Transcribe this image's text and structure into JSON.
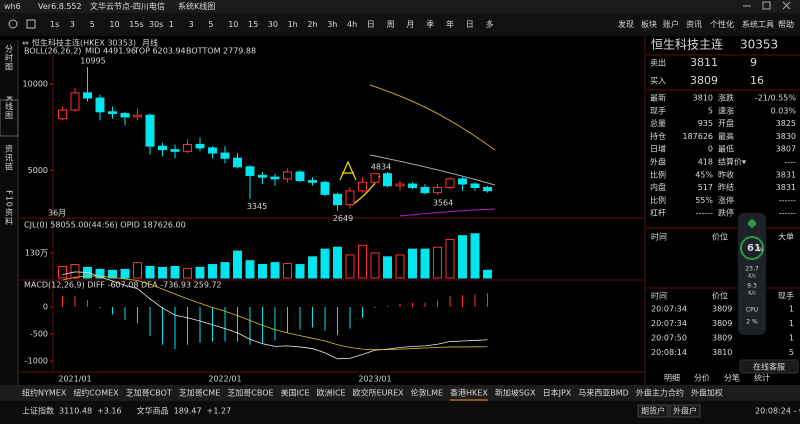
{
  "titlebar": {
    "app": "wh6",
    "version": "Ver6.8.552",
    "server": "文华云节点-四川电信",
    "view": "系统K线图"
  },
  "periods": [
    "1s",
    "3",
    "5",
    "10",
    "15s",
    "30s",
    "1",
    "3",
    "5",
    "10",
    "15",
    "30",
    "1h",
    "2h",
    "3h",
    "4h",
    "日",
    "周",
    "月",
    "季",
    "年",
    "日",
    "多"
  ],
  "menu": [
    "发现",
    "板块",
    "账户",
    "资讯",
    "个性化",
    "系统工具",
    "帮助"
  ],
  "side_tabs": [
    "分时图",
    "K线图",
    "资讯链",
    "F10资料"
  ],
  "chart": {
    "symbol": "恒生科技主连(HKEX 30353)",
    "period": "月线",
    "boll_legend": [
      "BOLL(26,26,2)",
      "MID 4491.96",
      "TOP 6203.94",
      "BOTTOM 2779.88"
    ],
    "ylim": [
      2400,
      11700
    ],
    "yticks": [
      5000,
      10000
    ],
    "open": [
      8000,
      8500,
      9500,
      9200,
      8400,
      8300,
      8100,
      8200,
      6400,
      6200,
      6100,
      6500,
      6300,
      6000,
      5700,
      5200,
      4700,
      4600,
      4500,
      4900,
      4400,
      4300,
      3600,
      3000,
      3800,
      4300,
      4800,
      4100,
      4200,
      4000,
      3700,
      4000,
      4500,
      4200,
      4000
    ],
    "high": [
      8700,
      9800,
      10995,
      9400,
      8700,
      8400,
      8600,
      8300,
      6600,
      6500,
      6800,
      6900,
      6400,
      6400,
      6000,
      5300,
      4900,
      4800,
      5100,
      5000,
      4600,
      4400,
      3700,
      4000,
      4600,
      4834,
      4900,
      4400,
      4300,
      4200,
      4200,
      4600,
      4600,
      4300,
      4100
    ],
    "low": [
      7900,
      8400,
      9000,
      7900,
      8000,
      7600,
      7900,
      5900,
      5800,
      5700,
      6000,
      6100,
      5700,
      5400,
      5100,
      3345,
      4200,
      4100,
      4300,
      4300,
      4100,
      3500,
      2649,
      2800,
      3700,
      4200,
      4000,
      3800,
      3900,
      3600,
      3564,
      3900,
      3800,
      3800,
      3700
    ],
    "close": [
      8500,
      9500,
      9200,
      8400,
      8300,
      8100,
      8200,
      6400,
      6200,
      6100,
      6500,
      6300,
      6000,
      5700,
      5200,
      4700,
      4600,
      4500,
      4900,
      4400,
      4300,
      3600,
      3000,
      3800,
      4300,
      4800,
      4100,
      4200,
      4000,
      3700,
      4000,
      4500,
      4200,
      4000,
      3810
    ],
    "extremes": [
      10995,
      3345,
      2649,
      4834,
      3564
    ],
    "count_label": "36月",
    "x_labels": [
      "2021/01",
      "2022/01",
      "2023/01"
    ],
    "volume": {
      "legend": "CJL(0)  58055.00(44:56)  OPID 187626.00",
      "ylim": [
        0,
        301.6
      ],
      "yticks": [
        {
          "value": 130,
          "label": "130万"
        }
      ],
      "values": [
        60,
        70,
        55,
        45,
        40,
        45,
        80,
        60,
        55,
        60,
        50,
        55,
        70,
        80,
        140,
        90,
        70,
        80,
        75,
        70,
        110,
        150,
        160,
        120,
        170,
        130,
        110,
        120,
        150,
        150,
        160,
        200,
        220,
        230,
        40
      ]
    },
    "macd": {
      "legend": "MACD(12,26,9)  DIFF -607.08  DEA -736.93  259.72",
      "ylim": [
        -1204,
        444
      ],
      "yticks": [
        0,
        -500,
        -1000
      ],
      "hist": [
        200,
        200,
        130,
        -20,
        -140,
        -240,
        -300,
        -540,
        -700,
        -780,
        -700,
        -660,
        -640,
        -640,
        -640,
        -700,
        -680,
        -620,
        -480,
        -420,
        -380,
        -440,
        -520,
        -400,
        -200,
        -20,
        20,
        60,
        80,
        80,
        120,
        200,
        220,
        236,
        259.72
      ],
      "diff": [
        600,
        650,
        640,
        560,
        480,
        400,
        340,
        150,
        -20,
        -150,
        -200,
        -260,
        -330,
        -400,
        -480,
        -600,
        -680,
        -730,
        -720,
        -740,
        -770,
        -850,
        -960,
        -950,
        -880,
        -800,
        -780,
        -750,
        -730,
        -720,
        -690,
        -640,
        -630,
        -620,
        -607.08
      ],
      "dea": [
        500,
        550,
        575,
        570,
        550,
        520,
        490,
        420,
        330,
        240,
        150,
        70,
        -10,
        -80,
        -160,
        -250,
        -340,
        -420,
        -480,
        -530,
        -580,
        -630,
        -700,
        -750,
        -780,
        -790,
        -790,
        -780,
        -770,
        -760,
        -750,
        -740,
        -740,
        -738,
        -736.93
      ]
    }
  },
  "quote": {
    "name": "恒生科技主连",
    "code": "30353",
    "ask": {
      "label": "卖出",
      "price": 3811,
      "size": 9
    },
    "bid": {
      "label": "买入",
      "price": 3809,
      "size": 16
    },
    "rows": [
      [
        "最新",
        "3810",
        "涨跌",
        "-21/0.55%"
      ],
      [
        "现手",
        "5",
        "速涨",
        "0.03%"
      ],
      [
        "总量",
        "935",
        "开盘",
        "3825"
      ],
      [
        "持仓",
        "187626",
        "最高",
        "3830"
      ],
      [
        "日增",
        "0",
        "最低",
        "3807"
      ],
      [
        "外盘",
        "418",
        "结算价▾",
        "----"
      ],
      [
        "比例",
        "45%",
        "昨收",
        "3831"
      ],
      [
        "内盘",
        "517",
        "昨结",
        "3831"
      ],
      [
        "比例",
        "55%",
        "涨停",
        "------"
      ],
      [
        "杠杆",
        "------",
        "跌停",
        "------"
      ]
    ],
    "big_header": [
      "时间",
      "价位",
      "大单"
    ],
    "meter": {
      "percent": "61",
      "unit": "%",
      "down": "23.7",
      "up": "9.3",
      "rate": "K/s",
      "cpu": "CPU",
      "cpu_value": "2 %"
    },
    "tick_header": [
      "时间",
      "价位",
      "现手"
    ],
    "ticks": [
      [
        "20:07:34",
        "3809",
        "1"
      ],
      [
        "20:07:34",
        "3809",
        "1"
      ],
      [
        "20:07:50",
        "3809",
        "1"
      ],
      [
        "20:08:14",
        "3810",
        "5"
      ]
    ],
    "service": "在线客服",
    "tabs": [
      "明细",
      "分价",
      "分笔",
      "统计"
    ]
  },
  "exchanges": [
    "纽约NYMEX",
    "纽约COMEX",
    "芝加哥CBOT",
    "芝加哥CME",
    "芝加哥CBOE",
    "美国ICE",
    "欧洲ICE",
    "欧交所EUREX",
    "伦敦LME",
    "香港HKEX",
    "新加坡SGX",
    "日本JPX",
    "马来西亚BMD",
    "外盘主力合约",
    "外盘加权"
  ],
  "active_exchange": "香港HKEX",
  "status": {
    "indices": [
      [
        "上证指数",
        "3110.48",
        "+3.16"
      ],
      [
        "文华商品",
        "189.47",
        "+1.27"
      ]
    ],
    "accounts": [
      "期货户",
      "外盘户"
    ],
    "clock": "20:08:24 - wh"
  }
}
